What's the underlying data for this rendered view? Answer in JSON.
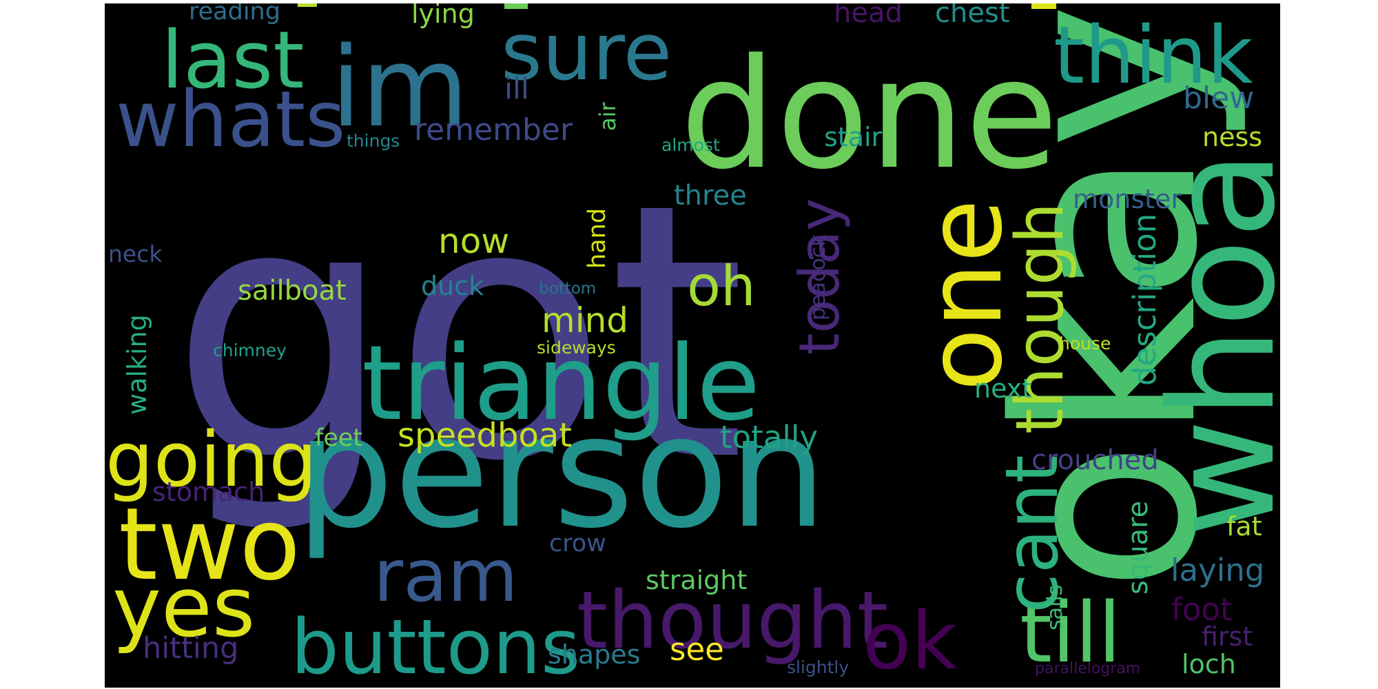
{
  "words": [
    {
      "text": "got",
      "color": "#433e85"
    },
    {
      "text": "okay",
      "color": "#4ac16d"
    },
    {
      "text": "person",
      "color": "#21918c"
    },
    {
      "text": "done",
      "color": "#6ccd5a"
    },
    {
      "text": "im",
      "color": "#2c728e"
    },
    {
      "text": "whoa",
      "color": "#35b779"
    },
    {
      "text": "triangle",
      "color": "#1f9e89"
    },
    {
      "text": "one",
      "color": "#e7e419"
    },
    {
      "text": "two",
      "color": "#e5e419"
    },
    {
      "text": "sure",
      "color": "#2a788e"
    },
    {
      "text": "think",
      "color": "#1f9a8a"
    },
    {
      "text": "last",
      "color": "#35b779"
    },
    {
      "text": "whats",
      "color": "#3b518b"
    },
    {
      "text": "thought",
      "color": "#48196b"
    },
    {
      "text": "till",
      "color": "#52c569"
    },
    {
      "text": "buttons",
      "color": "#1e9b8a"
    },
    {
      "text": "going",
      "color": "#dde318"
    },
    {
      "text": "yes",
      "color": "#dde318"
    },
    {
      "text": "ram",
      "color": "#38598c"
    },
    {
      "text": "though",
      "color": "#addc30"
    },
    {
      "text": "cant",
      "color": "#2db27d"
    },
    {
      "text": "ok",
      "color": "#440154"
    },
    {
      "text": "today",
      "color": "#482878"
    },
    {
      "text": "oh",
      "color": "#a5db36"
    },
    {
      "text": "speedboat",
      "color": "#c8e020"
    },
    {
      "text": "description",
      "color": "#22a884"
    },
    {
      "text": "mind",
      "color": "#b5de2b"
    },
    {
      "text": "now",
      "color": "#b5de2b"
    },
    {
      "text": "sailboat",
      "color": "#95d840"
    },
    {
      "text": "walking",
      "color": "#27ad81"
    },
    {
      "text": "totally",
      "color": "#20a386"
    },
    {
      "text": "square",
      "color": "#38b977"
    },
    {
      "text": "remember",
      "color": "#3e4a89"
    },
    {
      "text": "straight",
      "color": "#5ec962"
    },
    {
      "text": "laying",
      "color": "#2c718e"
    },
    {
      "text": "blew",
      "color": "#31688e"
    },
    {
      "text": "stomach",
      "color": "#482475"
    },
    {
      "text": "hitting",
      "color": "#46307e"
    },
    {
      "text": "shapes",
      "color": "#297b8e"
    },
    {
      "text": "see",
      "color": "#fde725"
    },
    {
      "text": "crouched",
      "color": "#414287"
    },
    {
      "text": "monster",
      "color": "#355f8d"
    },
    {
      "text": "foot",
      "color": "#440154"
    },
    {
      "text": "fat",
      "color": "#a8db34"
    },
    {
      "text": "loch",
      "color": "#50c46a"
    },
    {
      "text": "first",
      "color": "#481f70"
    },
    {
      "text": "next",
      "color": "#29af7f"
    },
    {
      "text": "ness",
      "color": "#b8de29"
    },
    {
      "text": "stair",
      "color": "#1fa187"
    },
    {
      "text": "three",
      "color": "#26828e"
    },
    {
      "text": "chest",
      "color": "#228d8d"
    },
    {
      "text": "head",
      "color": "#481467"
    },
    {
      "text": "lying",
      "color": "#8bd646"
    },
    {
      "text": "reading",
      "color": "#2e6f8e"
    },
    {
      "text": "ill",
      "color": "#3e4c8a"
    },
    {
      "text": "air",
      "color": "#5ac864"
    },
    {
      "text": "duck",
      "color": "#25848e"
    },
    {
      "text": "hand",
      "color": "#d8e219"
    },
    {
      "text": "feet",
      "color": "#6ece58"
    },
    {
      "text": "neck",
      "color": "#3b528b"
    },
    {
      "text": "crow",
      "color": "#39568c"
    },
    {
      "text": "sails",
      "color": "#3fbc73"
    },
    {
      "text": "peacock",
      "color": "#46327e"
    },
    {
      "text": "things",
      "color": "#25858e"
    },
    {
      "text": "almost",
      "color": "#22a785"
    },
    {
      "text": "bottom",
      "color": "#2a768e"
    },
    {
      "text": "sideways",
      "color": "#b5de2b"
    },
    {
      "text": "chimney",
      "color": "#1fa088"
    },
    {
      "text": "house",
      "color": "#c2df23"
    },
    {
      "text": "slightly",
      "color": "#3b528b"
    },
    {
      "text": "parallelogram",
      "color": "#471063"
    }
  ]
}
